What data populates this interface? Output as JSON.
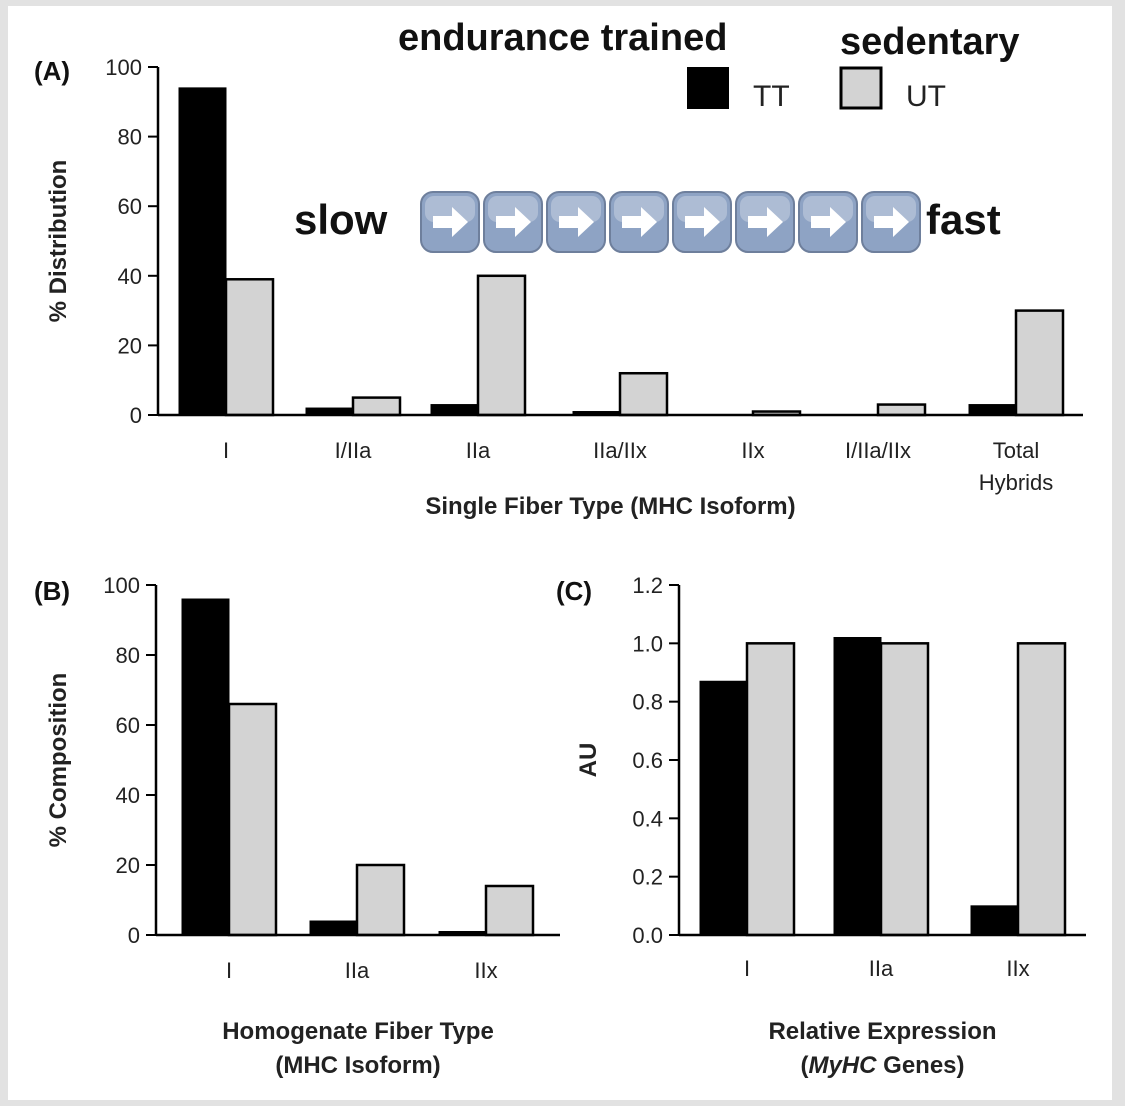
{
  "colors": {
    "trained": "#000000",
    "untrained": "#d3d3d3",
    "arrow_key": "#8ea3c4"
  },
  "header": {
    "endurance_label": "endurance trained",
    "sedentary_label": "sedentary",
    "slow_label": "slow",
    "fast_label": "fast",
    "arrow_count": 8,
    "arrow_icon": "right-arrow-key-icon"
  },
  "legend": [
    {
      "name": "TT",
      "color": "#000000"
    },
    {
      "name": "UT",
      "color": "#d3d3d3"
    }
  ],
  "chart_data": [
    {
      "panel": "(A)",
      "type": "bar",
      "categories": [
        "I",
        "I/IIa",
        "IIa",
        "IIa/IIx",
        "IIx",
        "I/IIa/IIx",
        "Total Hybrids"
      ],
      "category_lines": [
        [
          "I"
        ],
        [
          "I/IIa"
        ],
        [
          "IIa"
        ],
        [
          "IIa/IIx"
        ],
        [
          "IIx"
        ],
        [
          "I/IIa/IIx"
        ],
        [
          "Total",
          "Hybrids"
        ]
      ],
      "series": [
        {
          "name": "TT",
          "values": [
            94,
            2,
            3,
            1,
            0,
            0,
            3
          ]
        },
        {
          "name": "UT",
          "values": [
            39,
            5,
            40,
            12,
            1,
            3,
            30
          ]
        }
      ],
      "ylim": [
        0,
        100
      ],
      "yticks": [
        "0",
        "20",
        "40",
        "60",
        "80",
        "100"
      ],
      "ylabel": "% Distribution",
      "xlabel": [
        "Single Fiber Type (MHC Isoform)"
      ]
    },
    {
      "panel": "(B)",
      "type": "bar",
      "categories": [
        "I",
        "IIa",
        "IIx"
      ],
      "category_lines": [
        [
          "I"
        ],
        [
          "IIa"
        ],
        [
          "IIx"
        ]
      ],
      "series": [
        {
          "name": "TT",
          "values": [
            96,
            4,
            1
          ]
        },
        {
          "name": "UT",
          "values": [
            66,
            20,
            14
          ]
        }
      ],
      "ylim": [
        0,
        100
      ],
      "yticks": [
        "0",
        "20",
        "40",
        "60",
        "80",
        "100"
      ],
      "ylabel": "% Composition",
      "xlabel": [
        "Homogenate Fiber Type",
        "(MHC Isoform)"
      ]
    },
    {
      "panel": "(C)",
      "type": "bar",
      "categories": [
        "I",
        "IIa",
        "IIx"
      ],
      "category_lines": [
        [
          "I"
        ],
        [
          "IIa"
        ],
        [
          "IIx"
        ]
      ],
      "series": [
        {
          "name": "TT",
          "values": [
            0.87,
            1.02,
            0.1
          ]
        },
        {
          "name": "UT",
          "values": [
            1.0,
            1.0,
            1.0
          ]
        }
      ],
      "ylim": [
        0,
        1.2
      ],
      "yticks": [
        "0.0",
        "0.2",
        "0.4",
        "0.6",
        "0.8",
        "1.0",
        "1.2"
      ],
      "ylabel": "AU",
      "xlabel": [
        "Relative Expression",
        "(MyHC Genes)"
      ]
    }
  ]
}
